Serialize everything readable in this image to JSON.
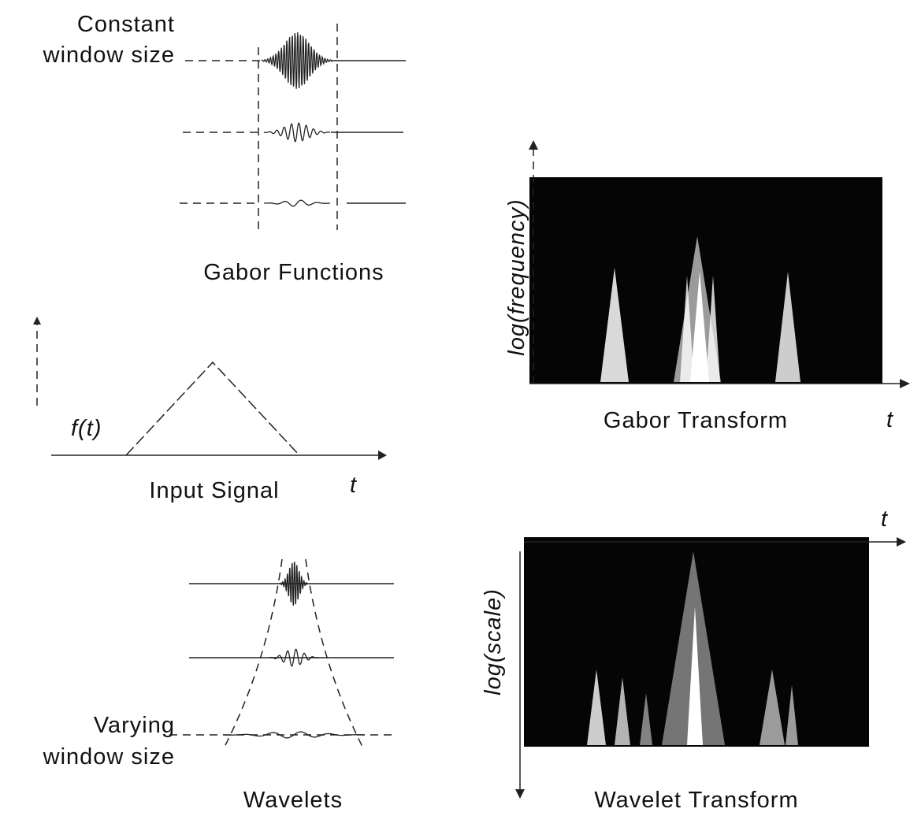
{
  "gabor_functions": {
    "annotation": [
      "Constant",
      "window size"
    ],
    "caption": "Gabor Functions"
  },
  "input_signal": {
    "function_label": "f(t)",
    "caption": "Input Signal",
    "axis_label": "t"
  },
  "gabor_transform": {
    "y_axis_label": "log(frequency)",
    "caption": "Gabor Transform",
    "x_axis_label": "t"
  },
  "wavelets": {
    "annotation": [
      "Varying",
      "window size"
    ],
    "caption": "Wavelets"
  },
  "wavelet_transform": {
    "y_axis_label": "log(scale)",
    "x_axis_label": "t",
    "caption": "Wavelet Transform"
  }
}
